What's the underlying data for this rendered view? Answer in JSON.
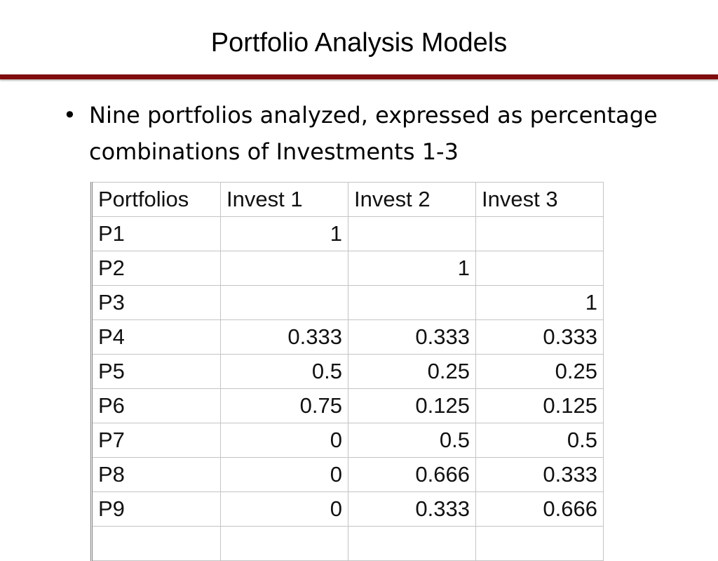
{
  "header": {
    "title": "Portfolio Analysis Models"
  },
  "bullets": [
    "Nine portfolios analyzed, expressed as percentage combinations of Investments 1-3"
  ],
  "table": {
    "columns": [
      "Portfolios",
      "Invest 1",
      "Invest 2",
      "Invest 3"
    ],
    "rows": [
      [
        "P1",
        1,
        null,
        null
      ],
      [
        "P2",
        null,
        1,
        null
      ],
      [
        "P3",
        null,
        null,
        1
      ],
      [
        "P4",
        0.333,
        0.333,
        0.333
      ],
      [
        "P5",
        0.5,
        0.25,
        0.25
      ],
      [
        "P6",
        0.75,
        0.125,
        0.125
      ],
      [
        "P7",
        0,
        0.5,
        0.5
      ],
      [
        "P8",
        0,
        0.666,
        0.333
      ],
      [
        "P9",
        0,
        0.333,
        0.666
      ]
    ]
  }
}
